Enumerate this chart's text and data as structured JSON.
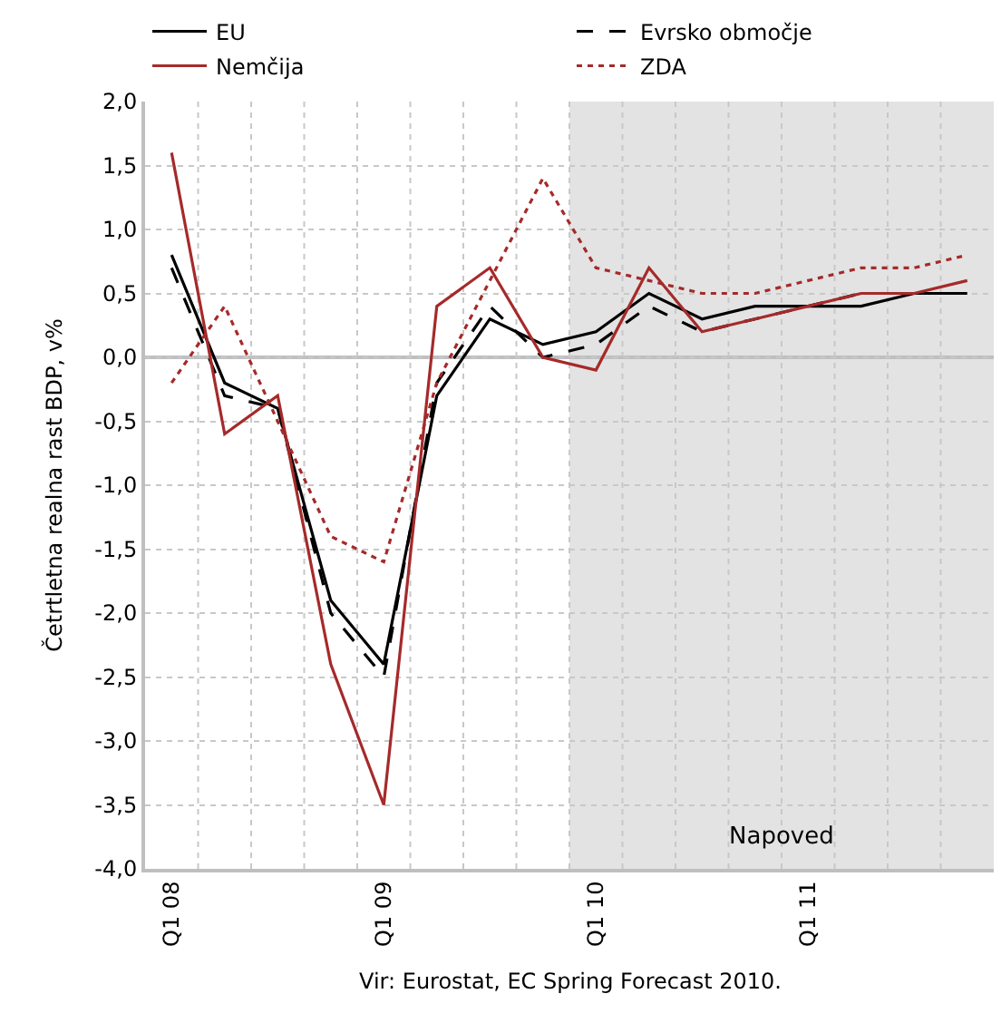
{
  "chart_data": {
    "type": "line",
    "ylabel": "Četrtletna realna rast BDP, v%",
    "categories": [
      "Q1 08",
      null,
      null,
      null,
      "Q1 09",
      null,
      null,
      null,
      "Q1 10",
      null,
      null,
      null,
      "Q1 11",
      null,
      null,
      null
    ],
    "series": [
      {
        "name": "EU",
        "color": "#000000",
        "line_style": "solid",
        "values": [
          0.8,
          -0.2,
          -0.4,
          -1.9,
          -2.4,
          -0.3,
          0.3,
          0.1,
          0.2,
          0.5,
          0.3,
          0.4,
          0.4,
          0.4,
          0.5,
          0.5
        ]
      },
      {
        "name": "Evrsko območje",
        "color": "#000000",
        "line_style": "dashed",
        "values": [
          0.7,
          -0.3,
          -0.4,
          -2.0,
          -2.5,
          -0.2,
          0.4,
          0.0,
          0.1,
          0.4,
          0.2,
          0.3,
          0.4,
          0.5,
          0.5,
          0.5
        ]
      },
      {
        "name": "Nemčija",
        "color": "#a52a2a",
        "line_style": "solid",
        "values": [
          1.6,
          -0.6,
          -0.3,
          -2.4,
          -3.5,
          0.4,
          0.7,
          0.0,
          -0.1,
          0.7,
          0.2,
          0.3,
          0.4,
          0.5,
          0.5,
          0.6
        ]
      },
      {
        "name": "ZDA",
        "color": "#a52a2a",
        "line_style": "dotted",
        "values": [
          -0.2,
          0.4,
          -0.5,
          -1.4,
          -1.6,
          -0.2,
          0.6,
          1.4,
          0.7,
          0.6,
          0.5,
          0.5,
          0.6,
          0.7,
          0.7,
          0.8
        ]
      }
    ],
    "ylim": [
      -4.0,
      2.0
    ],
    "yticks": [
      {
        "value": -4.0,
        "label": "-4,0"
      },
      {
        "value": -3.5,
        "label": "-3,5"
      },
      {
        "value": -3.0,
        "label": "-3,0"
      },
      {
        "value": -2.5,
        "label": "-2,5"
      },
      {
        "value": -2.0,
        "label": "-2,0"
      },
      {
        "value": -1.5,
        "label": "-1,5"
      },
      {
        "value": -1.0,
        "label": "-1,0"
      },
      {
        "value": -0.5,
        "label": "-0,5"
      },
      {
        "value": 0.0,
        "label": "0,0"
      },
      {
        "value": 0.5,
        "label": "0,5"
      },
      {
        "value": 1.0,
        "label": "1,0"
      },
      {
        "value": 1.5,
        "label": "1,5"
      },
      {
        "value": 2.0,
        "label": "2,0"
      }
    ],
    "ref_lines": [
      {
        "axis": "y",
        "value": 0,
        "color": "#bfbfbf"
      }
    ],
    "grid": true,
    "legend": "top",
    "marker": "none",
    "annotations": [
      "Vir: Eurostat, EC Spring Forecast 2010.",
      "Napoved"
    ]
  }
}
